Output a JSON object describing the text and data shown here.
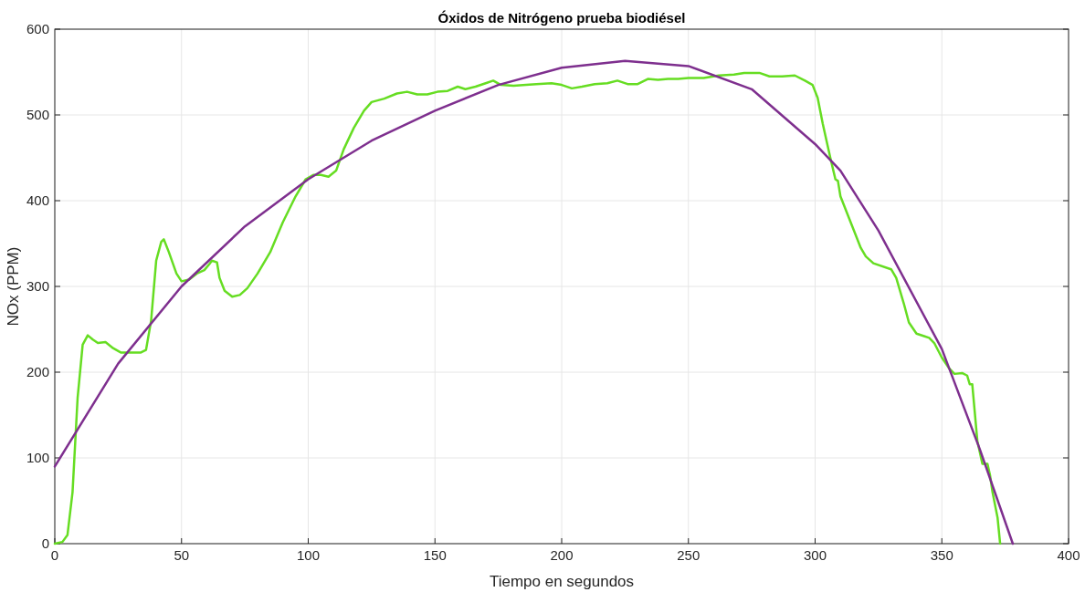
{
  "chart_data": {
    "type": "line",
    "title": "Óxidos de Nitrógeno prueba biodiésel",
    "xlabel": "Tiempo en segundos",
    "ylabel": "NOx (PPM)",
    "xlim": [
      0,
      400
    ],
    "xticks": [
      0,
      50,
      100,
      150,
      200,
      250,
      300,
      350,
      400
    ],
    "ylim": [
      0,
      600
    ],
    "yticks": [
      0,
      100,
      200,
      300,
      400,
      500,
      600
    ],
    "grid": true,
    "line_style": "solid",
    "series": [
      {
        "color": "#66dd22",
        "x": [
          0,
          3,
          5,
          7,
          9,
          11,
          13,
          15,
          17,
          20,
          23,
          26,
          30,
          34,
          36,
          38,
          40,
          42,
          43,
          45,
          48,
          50,
          53,
          56,
          59,
          61,
          62,
          64,
          65,
          67,
          70,
          73,
          76,
          80,
          85,
          90,
          95,
          99,
          102,
          105,
          108,
          111,
          114,
          118,
          122,
          125,
          130,
          135,
          139,
          143,
          147,
          151,
          155,
          159,
          162,
          166,
          170,
          173,
          176,
          181,
          186,
          190,
          196,
          200,
          204,
          208,
          213,
          218,
          222,
          226,
          230,
          234,
          238,
          242,
          246,
          250,
          256,
          262,
          268,
          272,
          278,
          282,
          287,
          292,
          296,
          299,
          301,
          303,
          306,
          308,
          309,
          310,
          314,
          318,
          320,
          323,
          330,
          332,
          335,
          337,
          340,
          343,
          345,
          347,
          350,
          353,
          355,
          358,
          360,
          361,
          362,
          364,
          366,
          368,
          369,
          370,
          372,
          373
        ],
        "values": [
          0,
          2,
          10,
          60,
          170,
          232,
          243,
          238,
          234,
          235,
          228,
          223,
          223,
          223,
          226,
          260,
          330,
          352,
          355,
          340,
          315,
          306,
          308,
          315,
          319,
          326,
          330,
          328,
          310,
          295,
          288,
          290,
          298,
          315,
          340,
          375,
          405,
          425,
          430,
          430,
          428,
          435,
          460,
          485,
          505,
          515,
          519,
          525,
          527,
          524,
          524,
          527,
          528,
          533,
          530,
          533,
          537,
          540,
          535,
          534,
          535,
          536,
          537,
          535,
          531,
          533,
          536,
          537,
          540,
          536,
          536,
          542,
          541,
          542,
          542,
          543,
          543,
          546,
          547,
          549,
          549,
          545,
          545,
          546,
          540,
          535,
          520,
          490,
          450,
          425,
          423,
          405,
          375,
          345,
          335,
          327,
          320,
          310,
          280,
          258,
          245,
          242,
          240,
          234,
          217,
          204,
          198,
          199,
          196,
          186,
          186,
          120,
          93,
          93,
          80,
          60,
          30,
          0
        ]
      },
      {
        "color": "#7e2f8e",
        "x": [
          0,
          25,
          50,
          75,
          100,
          125,
          150,
          175,
          200,
          225,
          250,
          275,
          300,
          310,
          325,
          350,
          365,
          378
        ],
        "values": [
          90,
          210,
          300,
          370,
          425,
          470,
          505,
          535,
          555,
          563,
          557,
          530,
          466,
          435,
          365,
          227,
          110,
          0
        ]
      }
    ]
  }
}
